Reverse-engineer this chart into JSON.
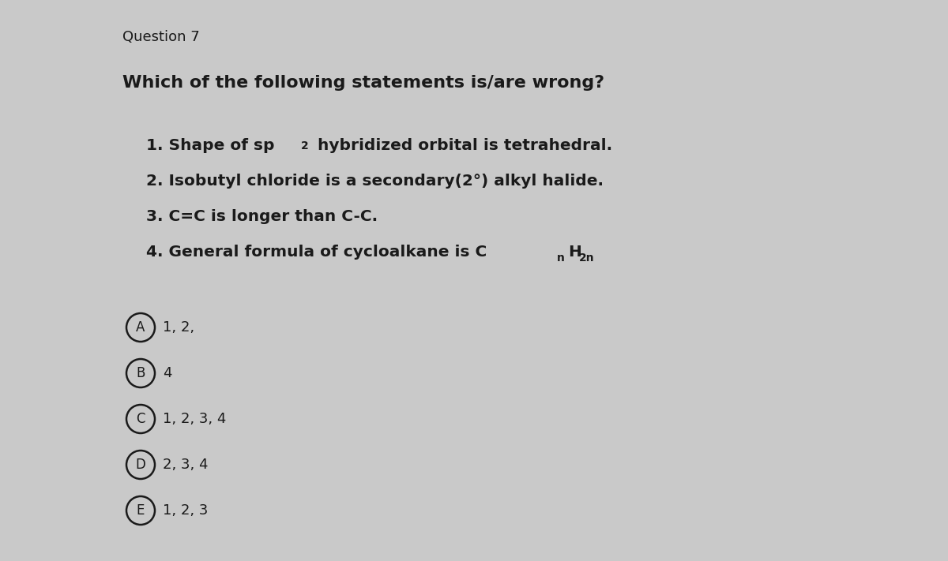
{
  "background_color": "#c9c9c9",
  "question_number": "Question 7",
  "question_text": "Which of the following statements is/are wrong?",
  "font_color": "#1a1a1a",
  "circle_color": "#1a1a1a",
  "q_num_fontsize": 13,
  "q_text_fontsize": 16,
  "stmt_fontsize": 14.5,
  "sub_fontsize": 10,
  "opt_fontsize": 13,
  "opt_label_fontsize": 12,
  "options": [
    {
      "label": "A",
      "text": "1, 2,"
    },
    {
      "label": "B",
      "text": "4"
    },
    {
      "label": "C",
      "text": "1, 2, 3, 4"
    },
    {
      "label": "D",
      "text": "2, 3, 4"
    },
    {
      "label": "E",
      "text": "1, 2, 3"
    }
  ]
}
